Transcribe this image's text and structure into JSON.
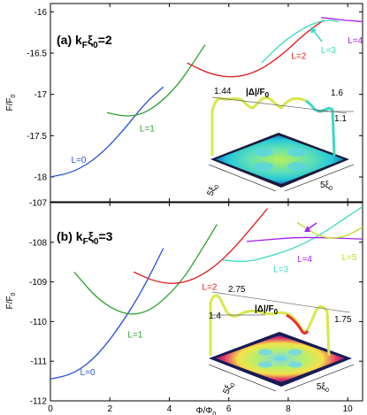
{
  "chart_data": [
    {
      "type": "line",
      "panel_label": "(a) k",
      "panel_sub": "F",
      "panel_mid": "ξ",
      "panel_sub2": "0",
      "panel_value": "=2",
      "ylabel": "F/F",
      "ylabel_sub": "0",
      "xlim": [
        0,
        10.5
      ],
      "ylim": [
        -18.3,
        -15.9
      ],
      "yticks": [
        -18,
        -17.5,
        -17,
        -16.5,
        -16
      ],
      "ytick_labels": [
        "-18",
        "-17.5",
        "-17",
        "-16.5",
        "-16"
      ],
      "xticks": [
        0,
        2,
        4,
        6,
        8,
        10
      ],
      "series": [
        {
          "name": "L=0",
          "color": "#2a4fd8",
          "x": [
            0,
            0.8,
            1.6,
            2.4,
            3.2,
            3.8
          ],
          "y": [
            -18.0,
            -17.94,
            -17.76,
            -17.46,
            -17.1,
            -16.91
          ]
        },
        {
          "name": "L=1",
          "color": "#2ca02c",
          "x": [
            1.9,
            2.5,
            3.1,
            3.7,
            4.3,
            4.8,
            5.2
          ],
          "y": [
            -17.22,
            -17.27,
            -17.24,
            -17.1,
            -16.88,
            -16.62,
            -16.4
          ]
        },
        {
          "name": "L=2",
          "color": "#e31a1c",
          "x": [
            4.6,
            5.4,
            6.2,
            7.0,
            7.8,
            8.6,
            9.2
          ],
          "y": [
            -16.62,
            -16.76,
            -16.8,
            -16.72,
            -16.52,
            -16.25,
            -16.1
          ]
        },
        {
          "name": "L=3",
          "color": "#3dd9c0",
          "x": [
            7.1,
            7.8,
            8.5,
            9.0,
            9.4,
            9.7
          ],
          "y": [
            -16.62,
            -16.37,
            -16.2,
            -16.12,
            -16.1,
            -16.12
          ]
        },
        {
          "name": "L=4",
          "color": "#a020f0",
          "x": [
            9.1,
            9.4,
            9.8,
            10.2,
            10.5
          ],
          "y": [
            -16.07,
            -16.08,
            -16.1,
            -16.11,
            -16.12
          ]
        }
      ],
      "labels": [
        {
          "text": "L=0",
          "color": "#2a4fd8",
          "x": 0.7,
          "y": -17.83
        },
        {
          "text": "L=1",
          "color": "#2ca02c",
          "x": 3.0,
          "y": -17.45
        },
        {
          "text": "L=2",
          "color": "#e31a1c",
          "x": 8.1,
          "y": -16.57
        },
        {
          "text": "L=3",
          "color": "#3dd9c0",
          "x": 9.1,
          "y": -16.5
        },
        {
          "text": "L=4",
          "color": "#a020f0",
          "x": 10.0,
          "y": -16.38
        }
      ],
      "inset": {
        "title": "|Δ|/F",
        "title_sub": "0",
        "values": [
          "1.44",
          "1.6",
          "1.1"
        ],
        "dim_left": "5ξ",
        "dim_left_sub": "0",
        "dim_right": "5ξ",
        "dim_right_sub": "0"
      }
    },
    {
      "type": "line",
      "panel_label": "(b) k",
      "panel_sub": "F",
      "panel_mid": "ξ",
      "panel_sub2": "0",
      "panel_value": "=3",
      "ylabel": "F/F",
      "ylabel_sub": "0",
      "xlabel": "Φ/Φ",
      "xlabel_sub": "0",
      "xlim": [
        0,
        10.5
      ],
      "ylim": [
        -112,
        -107
      ],
      "yticks": [
        -112,
        -111,
        -110,
        -109,
        -108,
        -107
      ],
      "ytick_labels": [
        "-112",
        "-111",
        "-110",
        "-109",
        "-108",
        "-107"
      ],
      "xticks": [
        0,
        2,
        4,
        6,
        8,
        10
      ],
      "xtick_labels": [
        "0",
        "2",
        "4",
        "6",
        "8",
        "10"
      ],
      "series": [
        {
          "name": "L=0",
          "color": "#2a4fd8",
          "x": [
            0,
            0.8,
            1.6,
            2.4,
            3.1,
            3.8
          ],
          "y": [
            -111.45,
            -111.32,
            -110.85,
            -110.05,
            -109.2,
            -108.15
          ]
        },
        {
          "name": "L=1",
          "color": "#2ca02c",
          "x": [
            0.8,
            1.6,
            2.4,
            3.0,
            3.6,
            4.4,
            5.0,
            5.6
          ],
          "y": [
            -108.75,
            -109.45,
            -109.8,
            -109.82,
            -109.6,
            -109.0,
            -108.3,
            -107.55
          ]
        },
        {
          "name": "L=2",
          "color": "#e31a1c",
          "x": [
            2.8,
            3.6,
            4.4,
            5.2,
            6.0,
            6.8,
            7.3
          ],
          "y": [
            -108.75,
            -109.02,
            -109.05,
            -108.8,
            -108.3,
            -107.6,
            -107.15
          ]
        },
        {
          "name": "L=3",
          "color": "#3dd9c0",
          "x": [
            5.8,
            6.6,
            7.4,
            8.2,
            9.0,
            9.8,
            10.5
          ],
          "y": [
            -108.45,
            -108.5,
            -108.35,
            -108.15,
            -107.85,
            -107.45,
            -107.1
          ]
        },
        {
          "name": "L=4",
          "color": "#a020f0",
          "x": [
            6.6,
            7.4,
            8.2,
            9.0,
            9.8,
            10.5
          ],
          "y": [
            -107.98,
            -107.93,
            -107.88,
            -107.88,
            -107.9,
            -107.92
          ]
        },
        {
          "name": "L=5",
          "color": "#c8d820",
          "x": [
            8.3,
            8.8,
            9.3,
            9.8,
            10.2,
            10.5
          ],
          "y": [
            -107.5,
            -107.75,
            -107.9,
            -107.88,
            -107.75,
            -107.62
          ]
        }
      ],
      "labels": [
        {
          "text": "L=0",
          "color": "#2a4fd8",
          "x": 1.0,
          "y": -111.35
        },
        {
          "text": "L=1",
          "color": "#2ca02c",
          "x": 2.6,
          "y": -110.4
        },
        {
          "text": "L=2",
          "color": "#e31a1c",
          "x": 5.1,
          "y": -109.2
        },
        {
          "text": "L=3",
          "color": "#3dd9c0",
          "x": 7.5,
          "y": -108.75
        },
        {
          "text": "L=4",
          "color": "#a020f0",
          "x": 8.3,
          "y": -108.5
        },
        {
          "text": "L=5",
          "color": "#c8d820",
          "x": 9.8,
          "y": -108.45
        }
      ],
      "inset": {
        "title": "|Δ|/F",
        "title_sub": "0",
        "values": [
          "2.75",
          "1.4",
          "1.75"
        ],
        "dim_left": "5ξ",
        "dim_left_sub": "0",
        "dim_right": "5ξ",
        "dim_right_sub": "0"
      }
    }
  ]
}
